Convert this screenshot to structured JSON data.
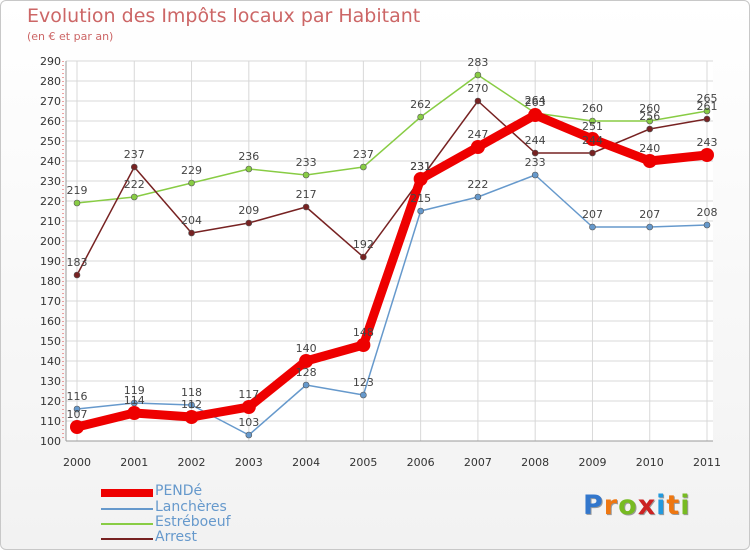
{
  "chart_data": {
    "type": "line",
    "title": "Evolution des Impôts locaux par Habitant",
    "subtitle": "(en € et par an)",
    "xlabel": "",
    "ylabel": "",
    "ylim": [
      100,
      290
    ],
    "ytick_step": 10,
    "grid": true,
    "legend_position": "bottom-left",
    "categories": [
      "2000",
      "2001",
      "2002",
      "2003",
      "2004",
      "2005",
      "2006",
      "2007",
      "2008",
      "2009",
      "2010",
      "2011"
    ],
    "series": [
      {
        "name": "PENDé",
        "color": "#ee0000",
        "values": [
          107,
          114,
          112,
          117,
          140,
          148,
          231,
          247,
          263,
          251,
          240,
          243
        ]
      },
      {
        "name": "Lanchères",
        "color": "#6699cc",
        "values": [
          116,
          119,
          118,
          103,
          128,
          123,
          215,
          222,
          233,
          207,
          207,
          208
        ]
      },
      {
        "name": "Estréboeuf",
        "color": "#88cc44",
        "values": [
          219,
          222,
          229,
          236,
          233,
          237,
          262,
          283,
          264,
          260,
          260,
          265
        ]
      },
      {
        "name": "Arrest",
        "color": "#772222",
        "values": [
          183,
          237,
          204,
          209,
          217,
          192,
          231,
          270,
          244,
          244,
          256,
          261
        ]
      }
    ]
  },
  "branding": {
    "logo_letters": [
      "P",
      "r",
      "o",
      "x",
      "i",
      "t",
      "i"
    ],
    "logo_colors": [
      "#3377cc",
      "#ee7711",
      "#77bb22",
      "#cc2222",
      "#2299dd",
      "#ee7711",
      "#77bb22"
    ]
  }
}
